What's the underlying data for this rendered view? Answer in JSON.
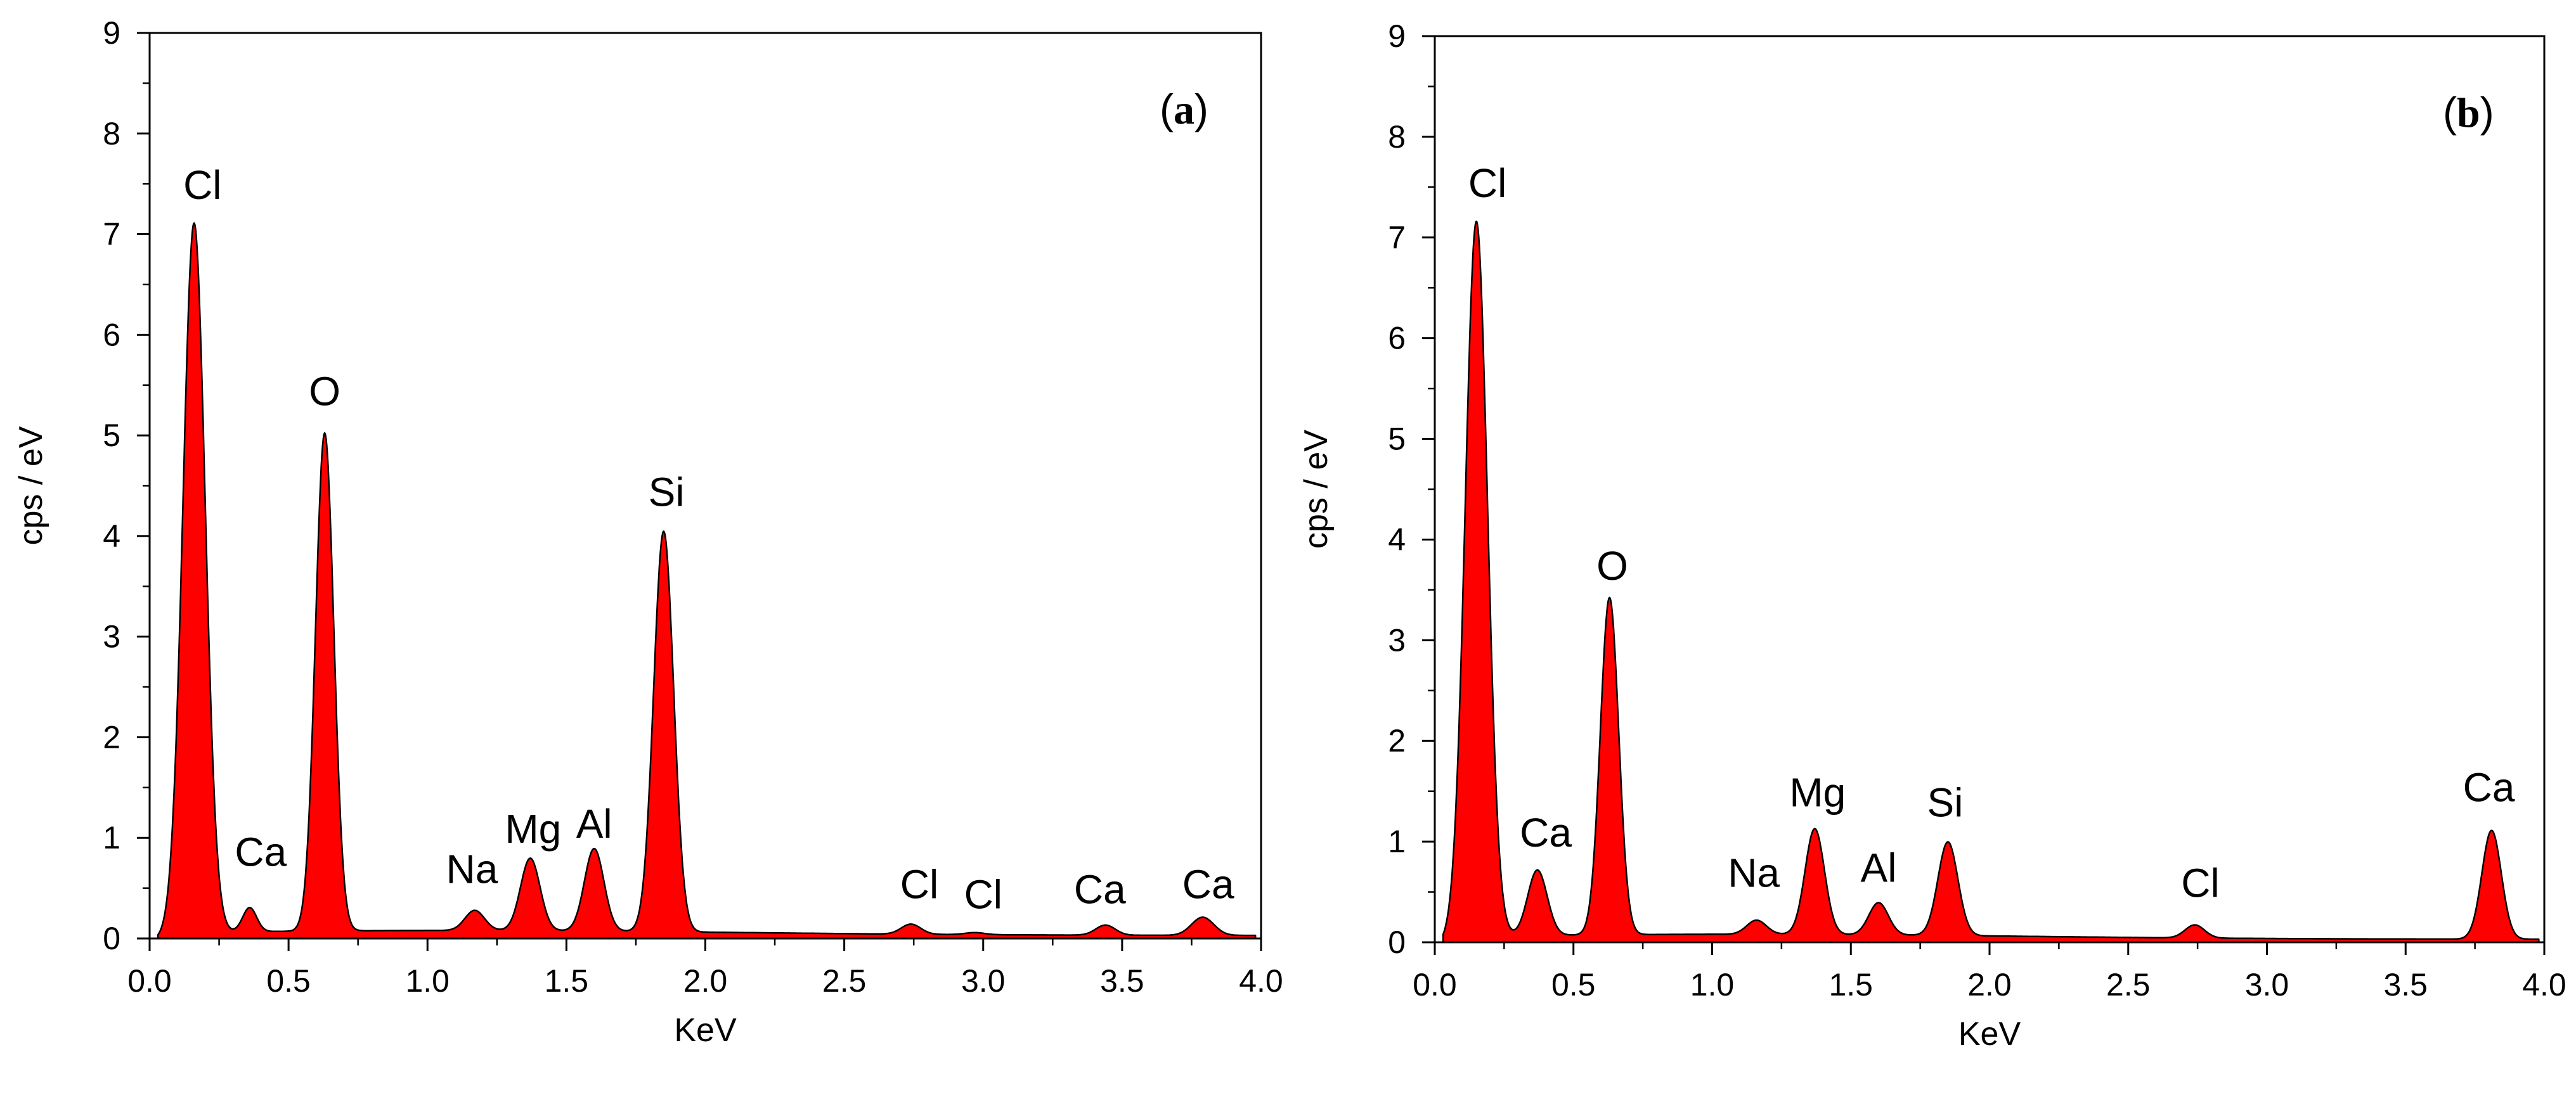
{
  "chart_data": [
    {
      "type": "area",
      "panel_label": "(a)",
      "panel_letter": "a",
      "xlabel": "KeV",
      "ylabel": "cps / eV",
      "xlim": [
        0.0,
        4.0
      ],
      "ylim": [
        0,
        9
      ],
      "x_tick_labels": [
        "0.0",
        "0.5",
        "1.0",
        "1.5",
        "2.0",
        "2.5",
        "3.0",
        "3.5",
        "4.0"
      ],
      "y_tick_labels": [
        "0",
        "1",
        "2",
        "3",
        "4",
        "5",
        "6",
        "7",
        "8",
        "9"
      ],
      "color": "#ff0000",
      "peaks": [
        {
          "element": "Cl",
          "x": 0.16,
          "y": 7.05,
          "w": 0.04
        },
        {
          "element": "Ca",
          "x": 0.36,
          "y": 0.24,
          "w": 0.025
        },
        {
          "element": "O",
          "x": 0.63,
          "y": 4.95,
          "w": 0.033
        },
        {
          "element": "Na",
          "x": 1.17,
          "y": 0.2,
          "w": 0.035
        },
        {
          "element": "Mg",
          "x": 1.37,
          "y": 0.72,
          "w": 0.035
        },
        {
          "element": "Al",
          "x": 1.6,
          "y": 0.82,
          "w": 0.035
        },
        {
          "element": "Si",
          "x": 1.85,
          "y": 3.98,
          "w": 0.036
        },
        {
          "element": "Cl",
          "x": 2.74,
          "y": 0.1,
          "w": 0.035
        },
        {
          "element": "Cl",
          "x": 2.97,
          "y": 0.02,
          "w": 0.035
        },
        {
          "element": "Ca",
          "x": 3.44,
          "y": 0.1,
          "w": 0.035
        },
        {
          "element": "Ca",
          "x": 3.79,
          "y": 0.18,
          "w": 0.04
        }
      ],
      "labels": [
        {
          "text": "Cl",
          "x": 0.19,
          "y": 7.35
        },
        {
          "text": "Ca",
          "x": 0.4,
          "y": 0.72
        },
        {
          "text": "O",
          "x": 0.63,
          "y": 5.3
        },
        {
          "text": "Na",
          "x": 1.16,
          "y": 0.55
        },
        {
          "text": "Mg",
          "x": 1.38,
          "y": 0.95
        },
        {
          "text": "Al",
          "x": 1.6,
          "y": 1.0
        },
        {
          "text": "Si",
          "x": 1.86,
          "y": 4.3
        },
        {
          "text": "Cl",
          "x": 2.77,
          "y": 0.4
        },
        {
          "text": "Cl",
          "x": 3.0,
          "y": 0.3
        },
        {
          "text": "Ca",
          "x": 3.42,
          "y": 0.35
        },
        {
          "text": "Ca",
          "x": 3.81,
          "y": 0.4
        }
      ]
    },
    {
      "type": "area",
      "panel_label": "(b)",
      "panel_letter": "b",
      "xlabel": "KeV",
      "ylabel": "cps / eV",
      "xlim": [
        0.0,
        4.0
      ],
      "ylim": [
        0,
        9
      ],
      "x_tick_labels": [
        "0.0",
        "0.5",
        "1.0",
        "1.5",
        "2.0",
        "2.5",
        "3.0",
        "3.5",
        "4.0"
      ],
      "y_tick_labels": [
        "0",
        "1",
        "2",
        "3",
        "4",
        "5",
        "6",
        "7",
        "8",
        "9"
      ],
      "color": "#ff0000",
      "peaks": [
        {
          "element": "Cl",
          "x": 0.15,
          "y": 7.1,
          "w": 0.04
        },
        {
          "element": "Ca",
          "x": 0.37,
          "y": 0.65,
          "w": 0.035
        },
        {
          "element": "O",
          "x": 0.63,
          "y": 3.35,
          "w": 0.033
        },
        {
          "element": "Na",
          "x": 1.16,
          "y": 0.14,
          "w": 0.035
        },
        {
          "element": "Mg",
          "x": 1.37,
          "y": 1.05,
          "w": 0.035
        },
        {
          "element": "Al",
          "x": 1.6,
          "y": 0.32,
          "w": 0.035
        },
        {
          "element": "Si",
          "x": 1.85,
          "y": 0.93,
          "w": 0.036
        },
        {
          "element": "Cl",
          "x": 2.74,
          "y": 0.13,
          "w": 0.035
        },
        {
          "element": "Ca",
          "x": 3.81,
          "y": 1.08,
          "w": 0.035
        }
      ],
      "labels": [
        {
          "text": "Cl",
          "x": 0.19,
          "y": 7.4
        },
        {
          "text": "Ca",
          "x": 0.4,
          "y": 0.95
        },
        {
          "text": "O",
          "x": 0.64,
          "y": 3.6
        },
        {
          "text": "Na",
          "x": 1.15,
          "y": 0.55
        },
        {
          "text": "Mg",
          "x": 1.38,
          "y": 1.35
        },
        {
          "text": "Al",
          "x": 1.6,
          "y": 0.6
        },
        {
          "text": "Si",
          "x": 1.84,
          "y": 1.25
        },
        {
          "text": "Cl",
          "x": 2.76,
          "y": 0.45
        },
        {
          "text": "Ca",
          "x": 3.8,
          "y": 1.4
        }
      ]
    }
  ]
}
